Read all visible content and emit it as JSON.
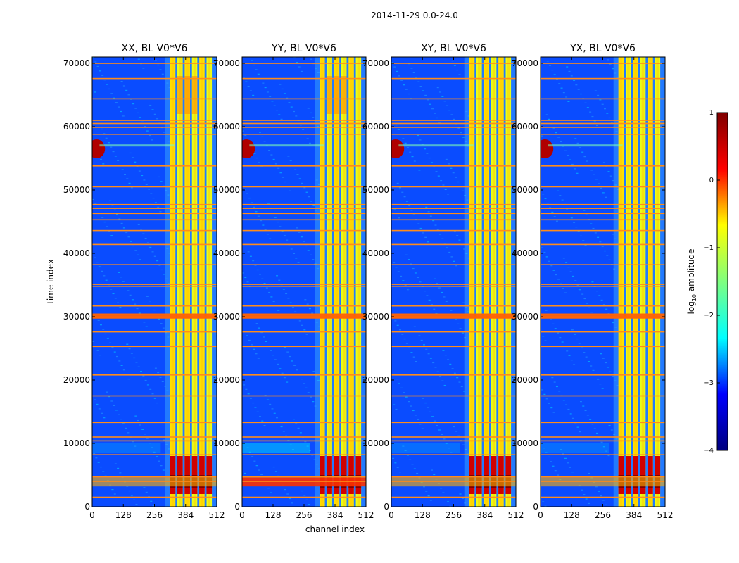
{
  "chart_data": {
    "type": "heatmap",
    "suptitle": "2014-11-29 0.0-24.0",
    "xlabel": "channel index",
    "ylabel": "time index",
    "xlim": [
      0,
      512
    ],
    "ylim": [
      0,
      71000
    ],
    "xticks": [
      0,
      128,
      256,
      384,
      512
    ],
    "yticks": [
      0,
      10000,
      20000,
      30000,
      40000,
      50000,
      60000,
      70000
    ],
    "panels": [
      {
        "title": "XX, BL V0*V6",
        "id": "xx"
      },
      {
        "title": "YY, BL V0*V6",
        "id": "yy"
      },
      {
        "title": "XY, BL V0*V6",
        "id": "xy"
      },
      {
        "title": "YX, BL V0*V6",
        "id": "yx"
      }
    ],
    "colorbar": {
      "label": "log₁₀ amplitude",
      "label_base": "log",
      "label_sub": "10",
      "label_rest": " amplitude",
      "range": [
        -4,
        1
      ],
      "ticks": [
        1,
        0,
        -1,
        -2,
        -3,
        -4
      ],
      "tick_labels": [
        "1",
        "0",
        "−1",
        "−2",
        "−3",
        "−4"
      ],
      "colormap": "jet",
      "colors": [
        "#00007f",
        "#0000ff",
        "#00ffff",
        "#7fff7f",
        "#ffff00",
        "#ff0000",
        "#7f0000"
      ]
    },
    "features": {
      "flag_rows_time": [
        1500,
        4000,
        4700,
        8200,
        10400,
        11000,
        13300,
        17500,
        20800,
        25300,
        27600,
        29800,
        30100,
        30400,
        31700,
        34800,
        35100,
        38200,
        41400,
        43600,
        45300,
        46300,
        47100,
        47700,
        50500,
        53800,
        58800,
        59900,
        60500,
        61000,
        64400,
        67600,
        70000
      ],
      "band_columns_channel": [
        320,
        350,
        380,
        410,
        440,
        470
      ],
      "rfi_burst_time": [
        55000,
        58000
      ],
      "strong_low_time_band": [
        2000,
        8000
      ]
    }
  }
}
